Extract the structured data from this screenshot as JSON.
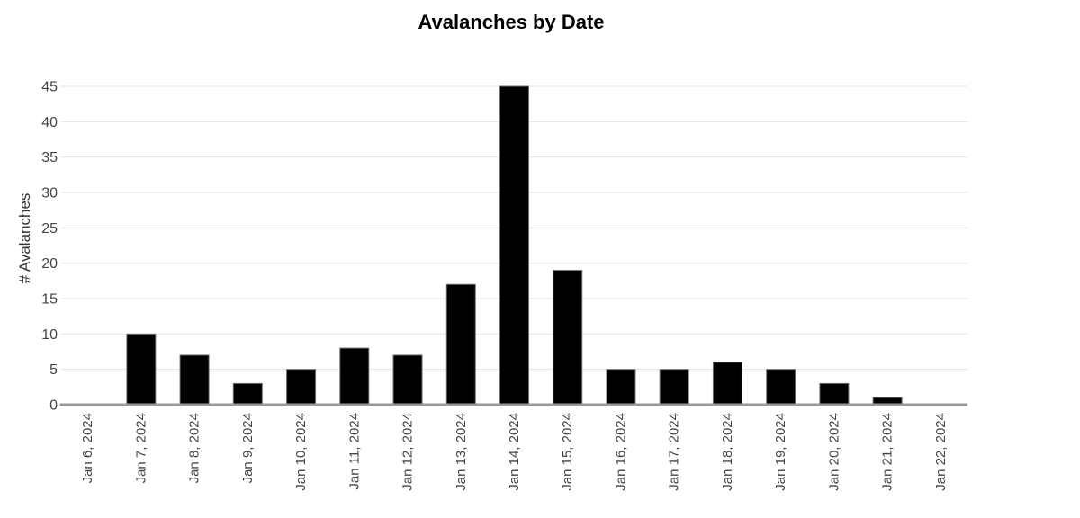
{
  "chart_data": {
    "type": "bar",
    "title": "Avalanches by Date",
    "xlabel": "",
    "ylabel": "# Avalanches",
    "categories": [
      "Jan 6, 2024",
      "Jan 7, 2024",
      "Jan 8, 2024",
      "Jan 9, 2024",
      "Jan 10, 2024",
      "Jan 11, 2024",
      "Jan 12, 2024",
      "Jan 13, 2024",
      "Jan 14, 2024",
      "Jan 15, 2024",
      "Jan 16, 2024",
      "Jan 17, 2024",
      "Jan 18, 2024",
      "Jan 19, 2024",
      "Jan 20, 2024",
      "Jan 21, 2024",
      "Jan 22, 2024"
    ],
    "values": [
      0,
      10,
      7,
      3,
      5,
      8,
      7,
      17,
      45,
      19,
      5,
      5,
      6,
      5,
      3,
      1,
      0
    ],
    "ylim": [
      0,
      45
    ],
    "yticks": [
      0,
      5,
      10,
      15,
      20,
      25,
      30,
      35,
      40,
      45
    ],
    "grid": "horizontal",
    "legend": "none",
    "colors": {
      "background": "#ffffff",
      "bar_fill": "#000000",
      "bar_stroke": "#6e6e6e",
      "gridline": "#e3e3e3",
      "baseline": "#999999",
      "tick_label": "#444444",
      "title": "#000000",
      "axis_title": "#333333"
    }
  }
}
